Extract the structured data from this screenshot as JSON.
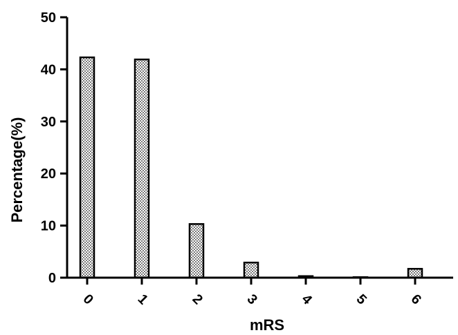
{
  "chart_data": {
    "type": "bar",
    "xlabel": "mRS",
    "ylabel": "Percentage(%)",
    "categories": [
      "0",
      "1",
      "2",
      "3",
      "4",
      "5",
      "6"
    ],
    "values": [
      42.3,
      41.9,
      10.3,
      2.9,
      0.3,
      0.1,
      1.7
    ],
    "ylim": [
      0,
      50
    ],
    "yticks": [
      0,
      10,
      20,
      30,
      40,
      50
    ],
    "ytick_labels": [
      "0",
      "10",
      "20",
      "30",
      "40",
      "50"
    ],
    "grid": false,
    "bar_fill": "checkered",
    "colors": {
      "bar_fill": "#b5b5b5",
      "bar_stroke": "#000000",
      "axis": "#000000"
    }
  }
}
